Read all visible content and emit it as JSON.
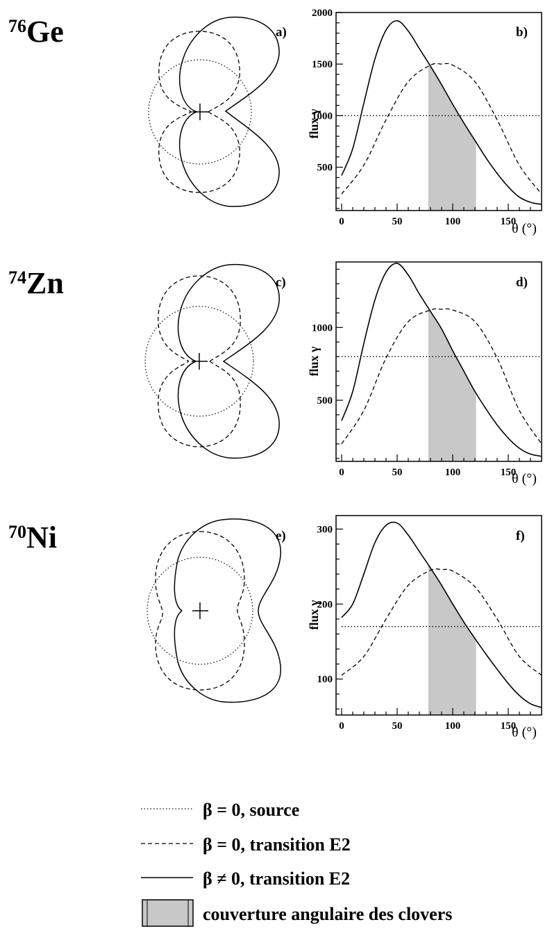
{
  "rows": [
    {
      "nucleus": {
        "mass": "76",
        "symbol": "Ge"
      },
      "polar_label": "a)",
      "chart_label": "b)",
      "ylabel": "flux γ",
      "xlabel": "θ (°)",
      "yticks": [
        "500",
        "1000",
        "1500",
        "2000"
      ],
      "xticks": [
        "0",
        "50",
        "100",
        "150"
      ]
    },
    {
      "nucleus": {
        "mass": "74",
        "symbol": "Zn"
      },
      "polar_label": "c)",
      "chart_label": "d)",
      "ylabel": "flux γ",
      "xlabel": "θ (°)",
      "yticks": [
        "500",
        "1000"
      ],
      "xticks": [
        "0",
        "50",
        "100",
        "150"
      ]
    },
    {
      "nucleus": {
        "mass": "70",
        "symbol": "Ni"
      },
      "polar_label": "e)",
      "chart_label": "f)",
      "ylabel": "flux γ",
      "xlabel": "θ (°)",
      "yticks": [
        "100",
        "200",
        "300"
      ],
      "xticks": [
        "0",
        "50",
        "100",
        "150"
      ]
    }
  ],
  "legend": [
    {
      "style": "dotted",
      "label": "β = 0, source"
    },
    {
      "style": "dashed",
      "label": "β = 0, transition E2"
    },
    {
      "style": "solid",
      "label": "β ≠ 0, transition E2"
    },
    {
      "style": "box",
      "label": "couverture angulaire des clovers"
    }
  ],
  "colors": {
    "line": "#000000",
    "shade": "#c8c8c8"
  },
  "chart_data": [
    {
      "type": "line",
      "title": "b)",
      "xlabel": "θ (°)",
      "ylabel": "flux γ",
      "xlim": [
        -5,
        180
      ],
      "ylim": [
        80,
        2000
      ],
      "shaded_x_range": [
        78,
        121
      ],
      "series": [
        {
          "style": "dotted",
          "x": [
            0,
            180
          ],
          "values": [
            1000,
            1000
          ]
        },
        {
          "style": "dashed",
          "x": [
            0,
            20,
            40,
            60,
            80,
            90,
            100,
            120,
            140,
            160,
            180
          ],
          "values": [
            240,
            520,
            960,
            1330,
            1490,
            1500,
            1490,
            1330,
            960,
            520,
            240
          ]
        },
        {
          "style": "solid",
          "x": [
            0,
            10,
            20,
            30,
            40,
            50,
            60,
            70,
            80,
            90,
            100,
            110,
            120,
            130,
            140,
            150,
            160,
            170,
            180
          ],
          "values": [
            420,
            680,
            1120,
            1550,
            1830,
            1920,
            1820,
            1650,
            1480,
            1300,
            1110,
            930,
            760,
            590,
            440,
            310,
            210,
            160,
            140
          ]
        }
      ]
    },
    {
      "type": "line",
      "title": "d)",
      "xlabel": "θ (°)",
      "ylabel": "flux γ",
      "xlim": [
        -5,
        180
      ],
      "ylim": [
        80,
        1450
      ],
      "shaded_x_range": [
        78,
        121
      ],
      "series": [
        {
          "style": "dotted",
          "x": [
            0,
            180
          ],
          "values": [
            800,
            800
          ]
        },
        {
          "style": "dashed",
          "x": [
            0,
            20,
            40,
            60,
            80,
            90,
            100,
            120,
            140,
            160,
            180
          ],
          "values": [
            200,
            430,
            790,
            1040,
            1120,
            1125,
            1120,
            1040,
            790,
            430,
            200
          ]
        },
        {
          "style": "solid",
          "x": [
            0,
            10,
            20,
            30,
            40,
            50,
            60,
            70,
            80,
            90,
            100,
            110,
            120,
            130,
            140,
            150,
            160,
            170,
            180
          ],
          "values": [
            360,
            560,
            890,
            1190,
            1380,
            1440,
            1360,
            1230,
            1110,
            990,
            840,
            700,
            560,
            440,
            330,
            240,
            170,
            130,
            115
          ]
        }
      ]
    },
    {
      "type": "line",
      "title": "f)",
      "xlabel": "θ (°)",
      "ylabel": "flux γ",
      "xlim": [
        -5,
        180
      ],
      "ylim": [
        52,
        318
      ],
      "shaded_x_range": [
        78,
        121
      ],
      "series": [
        {
          "style": "dotted",
          "x": [
            0,
            180
          ],
          "values": [
            170,
            170
          ]
        },
        {
          "style": "dashed",
          "x": [
            0,
            20,
            40,
            60,
            80,
            90,
            100,
            120,
            140,
            160,
            180
          ],
          "values": [
            105,
            130,
            180,
            225,
            245,
            246,
            244,
            223,
            180,
            130,
            105
          ]
        },
        {
          "style": "solid",
          "x": [
            0,
            10,
            20,
            30,
            40,
            50,
            60,
            70,
            80,
            90,
            100,
            110,
            120,
            130,
            140,
            150,
            160,
            170,
            180
          ],
          "values": [
            182,
            200,
            240,
            282,
            305,
            308,
            292,
            270,
            248,
            225,
            200,
            176,
            154,
            133,
            113,
            94,
            78,
            67,
            62
          ]
        }
      ]
    }
  ]
}
